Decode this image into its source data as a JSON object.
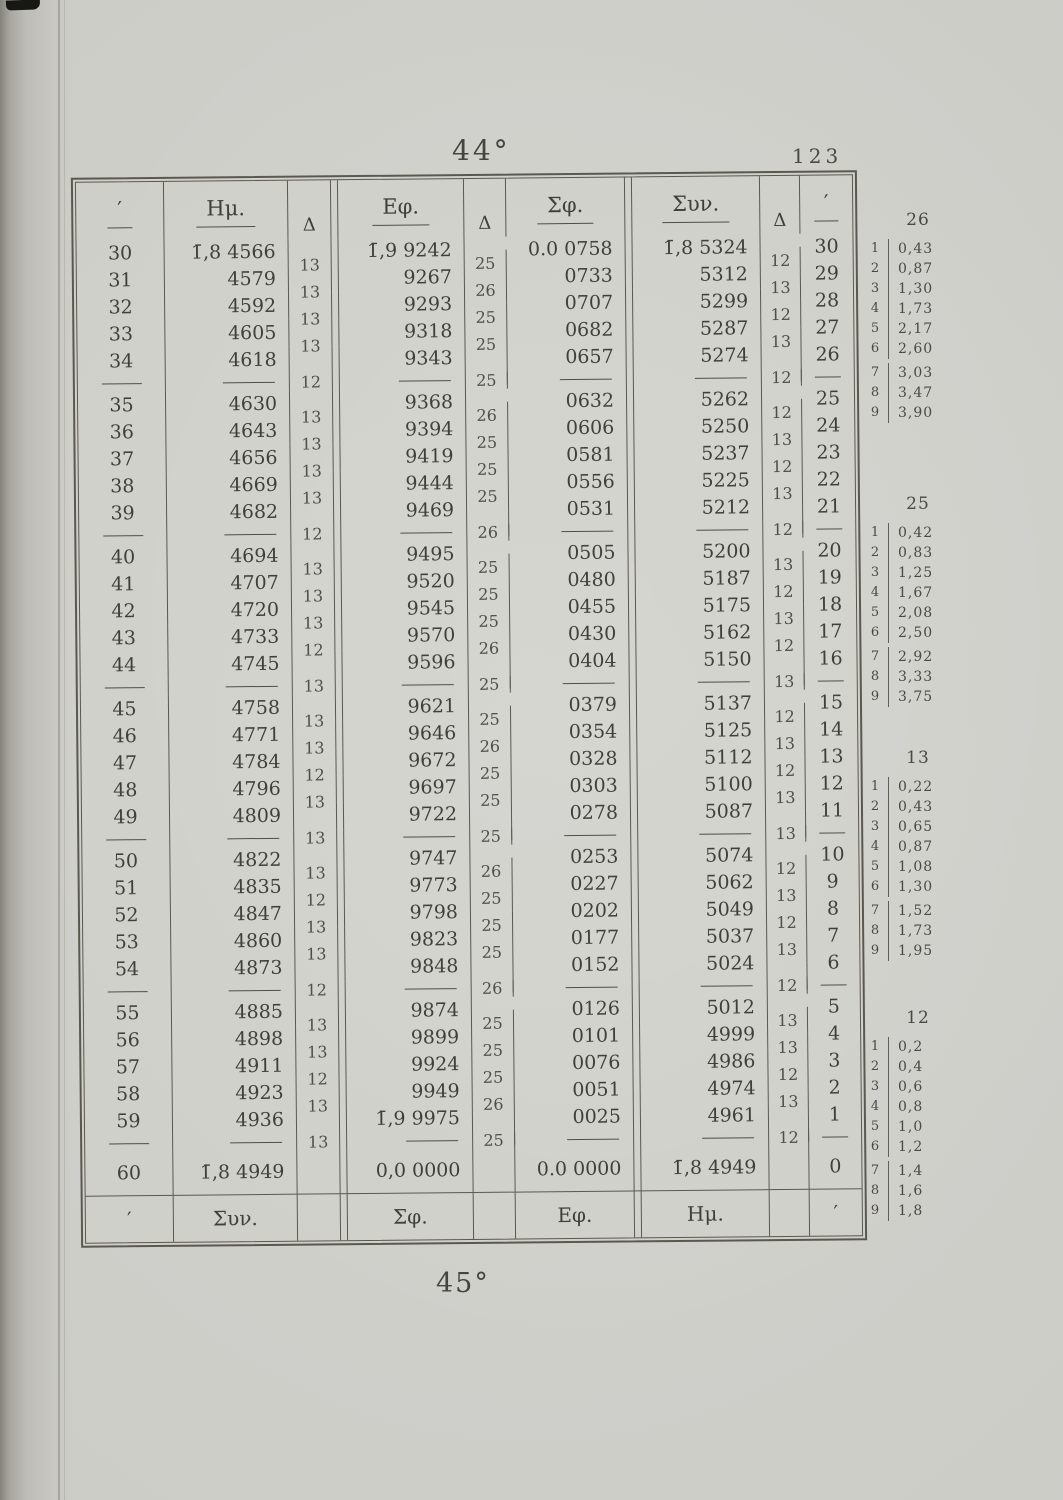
{
  "page": {
    "degree_top": "44°",
    "page_number": "123",
    "degree_bottom": "45°"
  },
  "table": {
    "headers": {
      "min_left": "′",
      "hm": "Ημ.",
      "delta": "Δ",
      "ef": "Εφ.",
      "sf": "Σφ.",
      "syn": "Συν.",
      "min_right": "′"
    },
    "footer": {
      "min_left": "′",
      "syn": "Συν.",
      "sf": "Σφ.",
      "ef": "Εφ.",
      "hm": "Ημ.",
      "min_right": "′"
    },
    "groups": [
      {
        "rows": [
          {
            "m": "30",
            "hm": "1̄,8 4566",
            "d1": "13",
            "ef": "1̄,9 9242",
            "d2": "25",
            "sf": "0.0 0758",
            "syn": "1̄,8 5324",
            "d3": "12",
            "mr": "30"
          },
          {
            "m": "31",
            "hm": "4579",
            "d1": "13",
            "ef": "9267",
            "d2": "26",
            "sf": "0733",
            "syn": "5312",
            "d3": "13",
            "mr": "29"
          },
          {
            "m": "32",
            "hm": "4592",
            "d1": "13",
            "ef": "9293",
            "d2": "25",
            "sf": "0707",
            "syn": "5299",
            "d3": "12",
            "mr": "28"
          },
          {
            "m": "33",
            "hm": "4605",
            "d1": "13",
            "ef": "9318",
            "d2": "25",
            "sf": "0682",
            "syn": "5287",
            "d3": "13",
            "mr": "27"
          },
          {
            "m": "34",
            "hm": "4618",
            "d1": "",
            "ef": "9343",
            "d2": "",
            "sf": "0657",
            "syn": "5274",
            "d3": "",
            "mr": "26"
          }
        ],
        "sep": {
          "d1": "12",
          "d2": "25",
          "d3": "12"
        }
      },
      {
        "rows": [
          {
            "m": "35",
            "hm": "4630",
            "d1": "13",
            "ef": "9368",
            "d2": "26",
            "sf": "0632",
            "syn": "5262",
            "d3": "12",
            "mr": "25"
          },
          {
            "m": "36",
            "hm": "4643",
            "d1": "13",
            "ef": "9394",
            "d2": "25",
            "sf": "0606",
            "syn": "5250",
            "d3": "13",
            "mr": "24"
          },
          {
            "m": "37",
            "hm": "4656",
            "d1": "13",
            "ef": "9419",
            "d2": "25",
            "sf": "0581",
            "syn": "5237",
            "d3": "12",
            "mr": "23"
          },
          {
            "m": "38",
            "hm": "4669",
            "d1": "13",
            "ef": "9444",
            "d2": "25",
            "sf": "0556",
            "syn": "5225",
            "d3": "13",
            "mr": "22"
          },
          {
            "m": "39",
            "hm": "4682",
            "d1": "",
            "ef": "9469",
            "d2": "",
            "sf": "0531",
            "syn": "5212",
            "d3": "",
            "mr": "21"
          }
        ],
        "sep": {
          "d1": "12",
          "d2": "26",
          "d3": "12"
        }
      },
      {
        "rows": [
          {
            "m": "40",
            "hm": "4694",
            "d1": "13",
            "ef": "9495",
            "d2": "25",
            "sf": "0505",
            "syn": "5200",
            "d3": "13",
            "mr": "20"
          },
          {
            "m": "41",
            "hm": "4707",
            "d1": "13",
            "ef": "9520",
            "d2": "25",
            "sf": "0480",
            "syn": "5187",
            "d3": "12",
            "mr": "19"
          },
          {
            "m": "42",
            "hm": "4720",
            "d1": "13",
            "ef": "9545",
            "d2": "25",
            "sf": "0455",
            "syn": "5175",
            "d3": "13",
            "mr": "18"
          },
          {
            "m": "43",
            "hm": "4733",
            "d1": "12",
            "ef": "9570",
            "d2": "26",
            "sf": "0430",
            "syn": "5162",
            "d3": "12",
            "mr": "17"
          },
          {
            "m": "44",
            "hm": "4745",
            "d1": "",
            "ef": "9596",
            "d2": "",
            "sf": "0404",
            "syn": "5150",
            "d3": "",
            "mr": "16"
          }
        ],
        "sep": {
          "d1": "13",
          "d2": "25",
          "d3": "13"
        }
      },
      {
        "rows": [
          {
            "m": "45",
            "hm": "4758",
            "d1": "13",
            "ef": "9621",
            "d2": "25",
            "sf": "0379",
            "syn": "5137",
            "d3": "12",
            "mr": "15"
          },
          {
            "m": "46",
            "hm": "4771",
            "d1": "13",
            "ef": "9646",
            "d2": "26",
            "sf": "0354",
            "syn": "5125",
            "d3": "13",
            "mr": "14"
          },
          {
            "m": "47",
            "hm": "4784",
            "d1": "12",
            "ef": "9672",
            "d2": "25",
            "sf": "0328",
            "syn": "5112",
            "d3": "12",
            "mr": "13"
          },
          {
            "m": "48",
            "hm": "4796",
            "d1": "13",
            "ef": "9697",
            "d2": "25",
            "sf": "0303",
            "syn": "5100",
            "d3": "13",
            "mr": "12"
          },
          {
            "m": "49",
            "hm": "4809",
            "d1": "",
            "ef": "9722",
            "d2": "",
            "sf": "0278",
            "syn": "5087",
            "d3": "",
            "mr": "11"
          }
        ],
        "sep": {
          "d1": "13",
          "d2": "25",
          "d3": "13"
        }
      },
      {
        "rows": [
          {
            "m": "50",
            "hm": "4822",
            "d1": "13",
            "ef": "9747",
            "d2": "26",
            "sf": "0253",
            "syn": "5074",
            "d3": "12",
            "mr": "10"
          },
          {
            "m": "51",
            "hm": "4835",
            "d1": "12",
            "ef": "9773",
            "d2": "25",
            "sf": "0227",
            "syn": "5062",
            "d3": "13",
            "mr": "9"
          },
          {
            "m": "52",
            "hm": "4847",
            "d1": "13",
            "ef": "9798",
            "d2": "25",
            "sf": "0202",
            "syn": "5049",
            "d3": "12",
            "mr": "8"
          },
          {
            "m": "53",
            "hm": "4860",
            "d1": "13",
            "ef": "9823",
            "d2": "25",
            "sf": "0177",
            "syn": "5037",
            "d3": "13",
            "mr": "7"
          },
          {
            "m": "54",
            "hm": "4873",
            "d1": "",
            "ef": "9848",
            "d2": "",
            "sf": "0152",
            "syn": "5024",
            "d3": "",
            "mr": "6"
          }
        ],
        "sep": {
          "d1": "12",
          "d2": "26",
          "d3": "12"
        }
      },
      {
        "rows": [
          {
            "m": "55",
            "hm": "4885",
            "d1": "13",
            "ef": "9874",
            "d2": "25",
            "sf": "0126",
            "syn": "5012",
            "d3": "13",
            "mr": "5"
          },
          {
            "m": "56",
            "hm": "4898",
            "d1": "13",
            "ef": "9899",
            "d2": "25",
            "sf": "0101",
            "syn": "4999",
            "d3": "13",
            "mr": "4"
          },
          {
            "m": "57",
            "hm": "4911",
            "d1": "12",
            "ef": "9924",
            "d2": "25",
            "sf": "0076",
            "syn": "4986",
            "d3": "12",
            "mr": "3"
          },
          {
            "m": "58",
            "hm": "4923",
            "d1": "13",
            "ef": "9949",
            "d2": "26",
            "sf": "0051",
            "syn": "4974",
            "d3": "13",
            "mr": "2"
          },
          {
            "m": "59",
            "hm": "4936",
            "d1": "",
            "ef": "1̄,9 9975",
            "d2": "",
            "sf": "0025",
            "syn": "4961",
            "d3": "",
            "mr": "1"
          }
        ],
        "sep": {
          "d1": "13",
          "d2": "25",
          "d3": "12"
        }
      }
    ],
    "last_row": {
      "m": "60",
      "hm": "1̄,8 4949",
      "ef": "0,0 0000",
      "sf": "0.0 0000",
      "syn": "1̄,8 4949",
      "mr": "0"
    }
  },
  "prop_tables": [
    {
      "title": "26",
      "entries": [
        [
          "1",
          "0,43"
        ],
        [
          "2",
          "0,87"
        ],
        [
          "3",
          "1,30"
        ],
        [
          "4",
          "1,73"
        ],
        [
          "5",
          "2,17"
        ],
        [
          "6",
          "2,60"
        ],
        [
          "7",
          "3,03"
        ],
        [
          "8",
          "3,47"
        ],
        [
          "9",
          "3,90"
        ]
      ]
    },
    {
      "title": "25",
      "entries": [
        [
          "1",
          "0,42"
        ],
        [
          "2",
          "0,83"
        ],
        [
          "3",
          "1,25"
        ],
        [
          "4",
          "1,67"
        ],
        [
          "5",
          "2,08"
        ],
        [
          "6",
          "2,50"
        ],
        [
          "7",
          "2,92"
        ],
        [
          "8",
          "3,33"
        ],
        [
          "9",
          "3,75"
        ]
      ]
    },
    {
      "title": "13",
      "entries": [
        [
          "1",
          "0,22"
        ],
        [
          "2",
          "0,43"
        ],
        [
          "3",
          "0,65"
        ],
        [
          "4",
          "0,87"
        ],
        [
          "5",
          "1,08"
        ],
        [
          "6",
          "1,30"
        ],
        [
          "7",
          "1,52"
        ],
        [
          "8",
          "1,73"
        ],
        [
          "9",
          "1,95"
        ]
      ]
    },
    {
      "title": "12",
      "entries": [
        [
          "1",
          "0,2"
        ],
        [
          "2",
          "0,4"
        ],
        [
          "3",
          "0,6"
        ],
        [
          "4",
          "0,8"
        ],
        [
          "5",
          "1,0"
        ],
        [
          "6",
          "1,2"
        ],
        [
          "7",
          "1,4"
        ],
        [
          "8",
          "1,6"
        ],
        [
          "9",
          "1,8"
        ]
      ]
    }
  ]
}
